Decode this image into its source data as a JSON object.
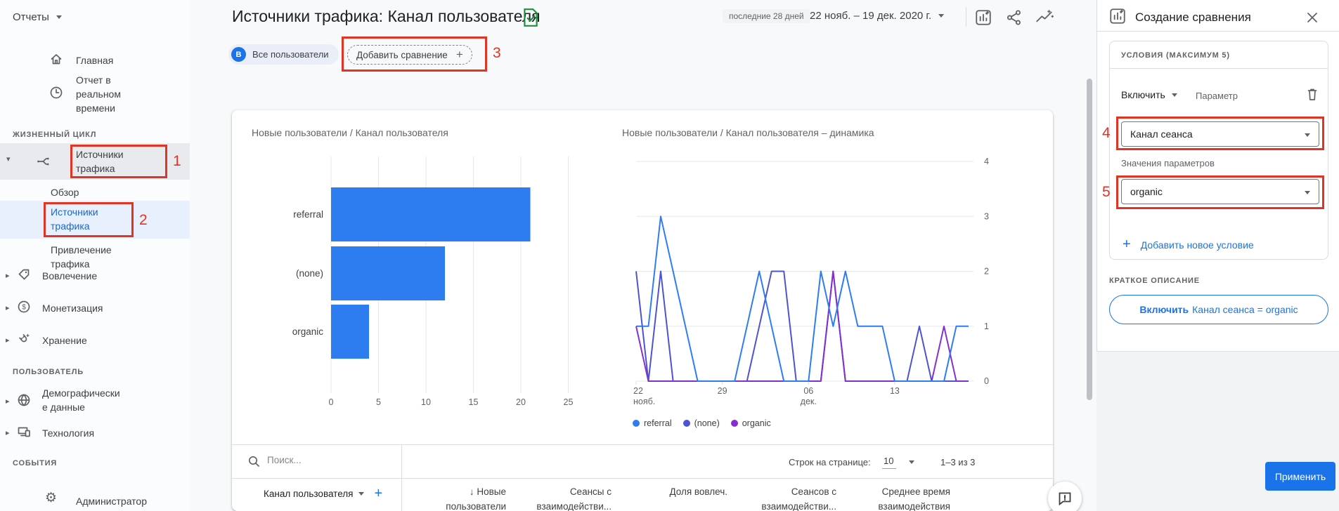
{
  "app": {
    "reports_menu_label": "Отчеты",
    "page_title": "Источники трафика: Канал пользователя",
    "period_preset": "последние 28 дней",
    "date_range": "22 нояб. – 19 дек. 2020 г."
  },
  "sidebar": {
    "home": "Главная",
    "realtime": "Отчет в\nреальном\nвремени",
    "lifecycle_section": "ЖИЗНЕННЫЙ ЦИКЛ",
    "traffic_sources_group": "Источники\nтрафика",
    "overview": "Обзор",
    "traffic_sources": "Источники\nтрафика",
    "traffic_acquisition": "Привлечение\nтрафика",
    "engagement": "Вовлечение",
    "monetization": "Монетизация",
    "retention": "Хранение",
    "user_section": "ПОЛЬЗОВАТЕЛЬ",
    "demographics": "Демографически\nе данные",
    "technology": "Технология",
    "events_section": "СОБЫТИЯ",
    "admin": "Администратор"
  },
  "comparisons": {
    "all_users_avatar": "В",
    "all_users": "Все пользователи",
    "add_comparison": "Добавить сравнение",
    "plus": "+"
  },
  "chart_data": [
    {
      "type": "bar",
      "title": "Новые пользователи / Канал пользователя",
      "orientation": "horizontal",
      "categories": [
        "referral",
        "(none)",
        "organic"
      ],
      "values": [
        21,
        12,
        4
      ],
      "xlabel": "",
      "ylabel": "",
      "xlim": [
        0,
        25
      ],
      "xticks": [
        0,
        5,
        10,
        15,
        20,
        25
      ],
      "grid": "vertical"
    },
    {
      "type": "line",
      "title": "Новые пользователи / Канал пользователя – динамика",
      "x_days": 28,
      "x_start_label": "22 нояб. 2020",
      "x_tick_positions": [
        0,
        7,
        14,
        21
      ],
      "x_tick_labels": [
        "22\nнояб.",
        "29",
        "06\nдек.",
        "13"
      ],
      "ylim": [
        0,
        4
      ],
      "yticks": [
        0,
        1,
        2,
        3,
        4
      ],
      "y_axis_side": "right",
      "legend_position": "bottom",
      "series": [
        {
          "name": "referral",
          "values": [
            1,
            1,
            3,
            2,
            1,
            0,
            0,
            0,
            0,
            1,
            2,
            1,
            0,
            0,
            0,
            2,
            1,
            2,
            1,
            1,
            1,
            0,
            0,
            0,
            0,
            0,
            1,
            1
          ]
        },
        {
          "name": "(none)",
          "values": [
            2,
            0,
            2,
            0,
            0,
            0,
            0,
            0,
            0,
            0,
            1,
            2,
            2,
            0,
            0,
            0,
            2,
            0,
            0,
            0,
            0,
            0,
            0,
            1,
            0,
            0,
            0,
            0
          ]
        },
        {
          "name": "organic",
          "values": [
            1,
            0,
            0,
            0,
            0,
            0,
            0,
            0,
            0,
            0,
            0,
            0,
            0,
            0,
            0,
            0,
            2,
            0,
            0,
            0,
            0,
            0,
            0,
            0,
            0,
            1,
            0,
            0
          ]
        }
      ]
    }
  ],
  "table": {
    "search_placeholder": "Поиск...",
    "rows_per_page_label": "Строк на странице:",
    "rows_per_page_value": "10",
    "pagination_range": "1–3 из 3",
    "dimension_column": "Канал пользователя",
    "sorted_column_arrow": "↓",
    "col_new_users": "Новые пользователи",
    "col_engaged_sessions": "Сеансы с\nвзаимодействи...",
    "col_engagement_rate": "Доля вовлеч.",
    "col_engaged_per_user": "Сеансов с\nвзаимодействи...",
    "col_avg_time": "Среднее время\nвзаимодействия"
  },
  "panel": {
    "title": "Создание сравнения",
    "conditions_label": "УСЛОВИЯ (МАКСИМУМ 5)",
    "include_label": "Включить",
    "parameter_label": "Параметр",
    "dimension_value": "Канал сеанса",
    "param_values_label": "Значения параметров",
    "param_value": "organic",
    "add_condition_plus": "+",
    "add_condition_label": "Добавить новое условие",
    "summary_label": "КРАТКОЕ ОПИСАНИЕ",
    "summary_operator": "Включить",
    "summary_text": "Канал сеанса = organic",
    "apply_label": "Применить"
  },
  "annotations": {
    "step1": "1",
    "step2": "2",
    "step3": "3",
    "step4": "4",
    "step5": "5"
  },
  "colors": {
    "accent_blue": "#1a73e8",
    "bar_blue": "#2e7df0",
    "series_referral": "#2e7df0",
    "series_none": "#4d54d1",
    "series_organic": "#8430ce",
    "annotation_red": "#e23425",
    "grid": "#e6e8ea",
    "axis_text": "#5f6368"
  }
}
